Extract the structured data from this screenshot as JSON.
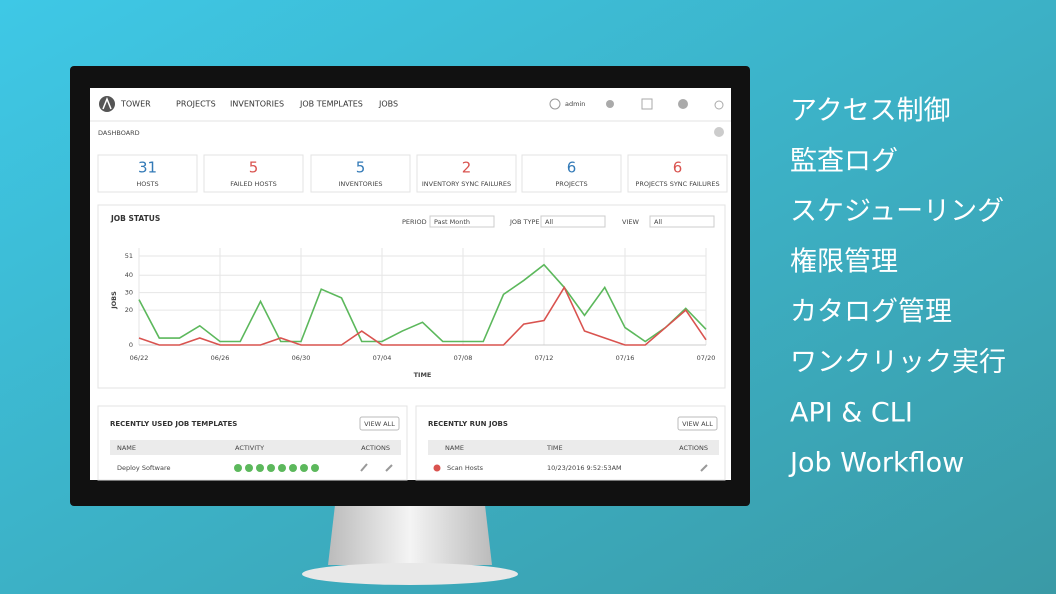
{
  "app": {
    "brand": "TOWER",
    "nav": [
      "PROJECTS",
      "INVENTORIES",
      "JOB TEMPLATES",
      "JOBS"
    ],
    "user": "admin",
    "page": "DASHBOARD"
  },
  "stats": [
    {
      "value": 31,
      "label": "HOSTS",
      "color": "#337ab7"
    },
    {
      "value": 5,
      "label": "FAILED HOSTS",
      "color": "#d9534f"
    },
    {
      "value": 5,
      "label": "INVENTORIES",
      "color": "#337ab7"
    },
    {
      "value": 2,
      "label": "INVENTORY SYNC FAILURES",
      "color": "#d9534f"
    },
    {
      "value": 6,
      "label": "PROJECTS",
      "color": "#337ab7"
    },
    {
      "value": 6,
      "label": "PROJECTS SYNC FAILURES",
      "color": "#d9534f"
    }
  ],
  "chart_data": {
    "type": "line",
    "title": "JOB STATUS",
    "filters": [
      {
        "label": "PERIOD",
        "value": "Past Month"
      },
      {
        "label": "JOB TYPE",
        "value": "All"
      },
      {
        "label": "VIEW",
        "value": "All"
      }
    ],
    "x_label": "TIME",
    "y_label": "JOBS",
    "categories": [
      "06/22",
      null,
      null,
      null,
      "06/26",
      null,
      null,
      null,
      "06/30",
      null,
      null,
      null,
      "07/04",
      null,
      null,
      null,
      "07/08",
      null,
      null,
      null,
      "07/12",
      null,
      null,
      null,
      "07/16",
      null,
      null,
      null,
      "07/20"
    ],
    "series": [
      {
        "color": "#5cb85c",
        "values": [
          26,
          4,
          4,
          11,
          2,
          2,
          25,
          2,
          2,
          32,
          27,
          2,
          2,
          8,
          13,
          2,
          2,
          2,
          29,
          37,
          46,
          33,
          17,
          33,
          10,
          2,
          10,
          21,
          9
        ]
      },
      {
        "color": "#d9534f",
        "values": [
          4,
          0,
          0,
          4,
          0,
          0,
          0,
          4,
          0,
          0,
          0,
          8,
          0,
          0,
          0,
          0,
          0,
          0,
          0,
          12,
          14,
          33,
          8,
          4,
          0,
          0,
          10,
          20,
          3
        ]
      }
    ],
    "ylim": [
      0,
      51
    ],
    "yticks": [
      0,
      20,
      30,
      40,
      51
    ],
    "grid": true
  },
  "templates": {
    "title": "RECENTLY USED JOB TEMPLATES",
    "button": "VIEW ALL",
    "columns": [
      "NAME",
      "ACTIVITY",
      "ACTIONS"
    ],
    "rows": [
      [
        "Deploy Software"
      ]
    ]
  },
  "jobs": {
    "title": "RECENTLY RUN JOBS",
    "button": "VIEW ALL",
    "columns": [
      "NAME",
      "TIME",
      "ACTIONS"
    ],
    "rows": [
      [
        "Scan Hosts",
        "10/23/2016 9:52:53AM"
      ]
    ]
  },
  "features": [
    "アクセス制御",
    "監査ログ",
    "スケジューリング",
    "権限管理",
    "カタログ管理",
    "ワンクリック実行",
    "API & CLI",
    "Job Workflow"
  ]
}
